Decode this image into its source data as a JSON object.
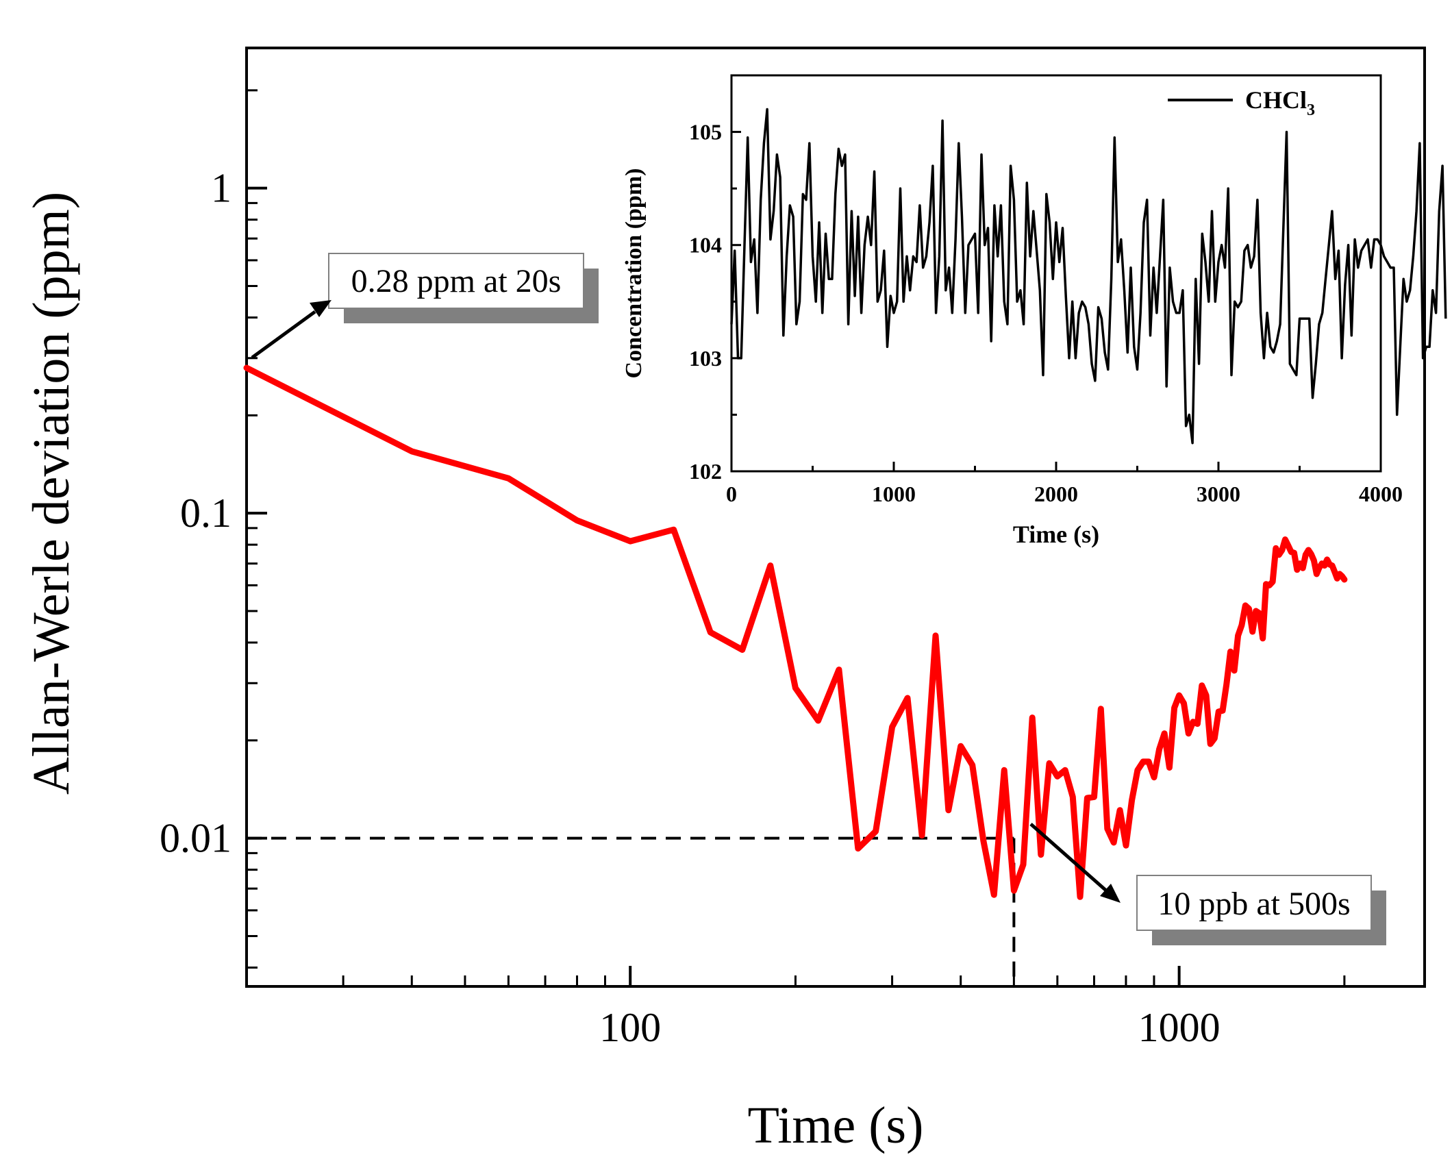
{
  "colors": {
    "main_series": "#ff0000",
    "inset_series": "#000000",
    "box_shadow": "#808080",
    "axis": "#000000",
    "background": "#ffffff"
  },
  "chart_data": [
    {
      "type": "line",
      "xlabel": "Time (s)",
      "ylabel": "Allan-Werle deviation (ppm)",
      "xscale": "log",
      "yscale": "log",
      "xlim": [
        20,
        2800
      ],
      "ylim": [
        0.0035,
        2.7
      ],
      "x_ticks": [
        {
          "value": 100,
          "label": "100"
        },
        {
          "value": 1000,
          "label": "1000"
        }
      ],
      "y_ticks": [
        {
          "value": 0.01,
          "label": "0.01"
        },
        {
          "value": 0.1,
          "label": "0.1"
        },
        {
          "value": 1,
          "label": "1"
        }
      ],
      "grid": false,
      "series": [
        {
          "x": [
            20,
            40,
            60,
            80,
            100,
            120,
            140,
            160,
            180,
            200,
            220,
            240,
            260,
            280,
            300,
            320,
            340,
            360,
            380,
            400,
            420,
            440,
            460,
            480,
            500,
            520,
            540,
            560,
            580,
            600,
            620,
            640,
            660,
            680,
            700,
            720,
            740,
            760,
            780,
            800,
            820,
            840,
            860,
            880,
            900,
            920,
            940,
            960,
            980,
            1000,
            1020,
            1040,
            1060,
            1080,
            1100,
            1120,
            1140,
            1160,
            1180,
            1200,
            1220,
            1240,
            1260,
            1280,
            1300,
            1320,
            1340,
            1360,
            1380,
            1400,
            1420,
            1440,
            1460,
            1480,
            1500,
            1520,
            1540,
            1560,
            1580,
            1600,
            1620,
            1640,
            1660,
            1680,
            1700,
            1720,
            1740,
            1760,
            1780,
            1800,
            1820,
            1840,
            1860,
            1880,
            1900,
            1920,
            1940,
            1960,
            1980,
            2000
          ],
          "y": [
            0.28,
            0.155,
            0.128,
            0.095,
            0.082,
            0.089,
            0.043,
            0.038,
            0.069,
            0.029,
            0.023,
            0.033,
            0.0093,
            0.0105,
            0.022,
            0.027,
            0.0102,
            0.042,
            0.0122,
            0.0192,
            0.0168,
            0.0098,
            0.0067,
            0.0162,
            0.0069,
            0.0083,
            0.0235,
            0.0089,
            0.017,
            0.0155,
            0.0162,
            0.0134,
            0.0066,
            0.0133,
            0.0134,
            0.025,
            0.0107,
            0.0097,
            0.0122,
            0.0095,
            0.0131,
            0.0162,
            0.0172,
            0.0172,
            0.0154,
            0.0188,
            0.021,
            0.0165,
            0.0252,
            0.0275,
            0.026,
            0.021,
            0.0228,
            0.0225,
            0.0295,
            0.0275,
            0.0195,
            0.0203,
            0.0245,
            0.0247,
            0.0298,
            0.0375,
            0.0328,
            0.042,
            0.0452,
            0.052,
            0.0508,
            0.0432,
            0.05,
            0.0492,
            0.0412,
            0.0605,
            0.06,
            0.0615,
            0.078,
            0.0745,
            0.077,
            0.083,
            0.0795,
            0.076,
            0.0755,
            0.067,
            0.07,
            0.0678,
            0.0745,
            0.077,
            0.0748,
            0.0715,
            0.065,
            0.068,
            0.07,
            0.069,
            0.072,
            0.0695,
            0.069,
            0.066,
            0.063,
            0.065,
            0.064,
            0.0625
          ]
        }
      ],
      "annotations": [
        {
          "text": "0.28 ppm at 20s",
          "x": 20,
          "y": 0.28
        },
        {
          "text": "10 ppb at 500s",
          "x": 500,
          "y": 0.01
        }
      ],
      "reference_lines": {
        "x": 500,
        "y": 0.01
      }
    },
    {
      "type": "line",
      "xlabel": "Time (s)",
      "ylabel": "Concentration (ppm)",
      "xlim": [
        0,
        4000
      ],
      "ylim": [
        102,
        105.5
      ],
      "x_ticks": [
        {
          "value": 0,
          "label": "0"
        },
        {
          "value": 1000,
          "label": "1000"
        },
        {
          "value": 2000,
          "label": "2000"
        },
        {
          "value": 3000,
          "label": "3000"
        },
        {
          "value": 4000,
          "label": "4000"
        }
      ],
      "y_ticks": [
        {
          "value": 102,
          "label": "102"
        },
        {
          "value": 103,
          "label": "103"
        },
        {
          "value": 104,
          "label": "104"
        },
        {
          "value": 105,
          "label": "105"
        }
      ],
      "legend": {
        "placement": "top-right",
        "entry": "CHCl",
        "subscript": "3"
      },
      "grid": false,
      "series": [
        {
          "name": "CHCl3",
          "x_step": 20,
          "y": [
            103.3,
            103.95,
            103.0,
            103.0,
            104.0,
            104.95,
            103.85,
            104.05,
            103.4,
            104.4,
            104.9,
            105.2,
            104.05,
            104.3,
            104.8,
            104.6,
            103.2,
            103.9,
            104.35,
            104.25,
            103.3,
            103.5,
            104.45,
            104.4,
            104.9,
            103.9,
            103.5,
            104.2,
            103.4,
            104.1,
            103.7,
            103.7,
            104.45,
            104.85,
            104.7,
            104.8,
            103.3,
            104.3,
            103.55,
            104.25,
            103.4,
            104.0,
            104.25,
            104.0,
            104.65,
            103.5,
            103.6,
            103.95,
            103.1,
            103.55,
            103.4,
            103.5,
            104.5,
            103.5,
            103.9,
            103.6,
            103.9,
            103.85,
            104.35,
            103.8,
            103.9,
            104.2,
            104.7,
            103.4,
            103.9,
            105.1,
            103.6,
            103.8,
            103.4,
            104.05,
            104.9,
            104.25,
            103.4,
            104.0,
            104.05,
            104.1,
            103.4,
            104.8,
            104.0,
            104.15,
            103.15,
            104.35,
            103.9,
            104.35,
            103.5,
            103.3,
            104.7,
            104.4,
            103.5,
            103.6,
            103.3,
            104.55,
            103.9,
            104.3,
            103.95,
            103.6,
            102.85,
            104.45,
            104.2,
            103.7,
            104.2,
            103.85,
            104.15,
            103.55,
            103.0,
            103.5,
            103.0,
            103.4,
            103.5,
            103.45,
            103.3,
            102.95,
            102.8,
            103.45,
            103.35,
            103.05,
            102.9,
            103.7,
            104.95,
            103.85,
            104.05,
            103.6,
            103.05,
            103.8,
            103.1,
            102.9,
            103.4,
            104.2,
            104.4,
            103.2,
            103.8,
            103.4,
            103.9,
            104.4,
            102.75,
            103.8,
            103.5,
            103.4,
            103.4,
            103.6,
            102.4,
            102.5,
            102.25,
            103.7,
            102.95,
            104.1,
            103.85,
            103.5,
            104.3,
            103.5,
            103.85,
            104.0,
            103.8,
            104.5,
            102.85,
            103.5,
            103.45,
            103.5,
            103.95,
            104.0,
            103.8,
            103.9,
            104.4,
            103.4,
            103.0,
            103.4,
            103.1,
            103.05,
            103.15,
            103.3,
            104.15,
            105.0,
            102.95,
            102.9,
            102.85,
            103.35,
            103.35,
            103.35,
            103.35,
            102.65,
            102.95,
            103.3,
            103.4,
            103.7,
            104.0,
            104.3,
            103.7,
            103.95,
            103.0,
            103.65,
            104.0,
            103.2,
            104.05,
            103.8,
            103.95,
            104.0,
            104.05,
            103.8,
            104.05,
            104.05,
            104.0,
            103.9,
            103.85,
            103.8,
            103.8,
            102.5,
            103.1,
            103.7,
            103.5,
            103.6,
            103.9,
            104.3,
            104.9,
            103.0,
            103.1,
            103.1,
            103.6,
            103.4,
            104.3,
            104.7,
            103.35
          ]
        }
      ]
    }
  ]
}
